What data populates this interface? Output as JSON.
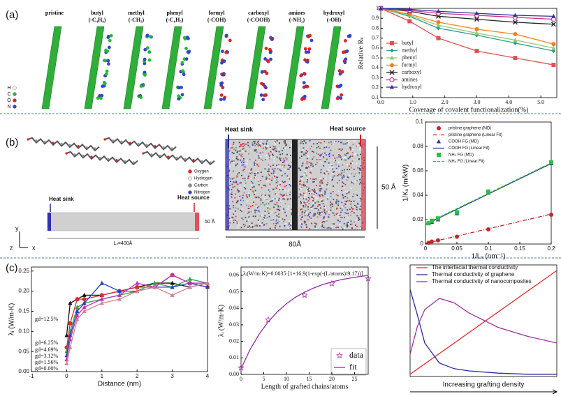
{
  "panels": {
    "a": {
      "label": "(a)",
      "structures": [
        {
          "name": "pristine"
        },
        {
          "name": "butyl",
          "formula": "(-C₄H₉)"
        },
        {
          "name": "methyl",
          "formula": "(-CH₃)"
        },
        {
          "name": "phenyl",
          "formula": "(-C₆H₅)"
        },
        {
          "name": "formyl",
          "formula": "(-COH)"
        },
        {
          "name": "carboxyl",
          "formula": "(-COOH)"
        },
        {
          "name": "amines",
          "formula": "(-NH₂)"
        },
        {
          "name": "hydroxyl",
          "formula": "(-OH)"
        }
      ],
      "atoms": [
        "H",
        "C",
        "O",
        "N"
      ],
      "atom_colors": [
        "#f4f4f4",
        "#22bb33",
        "#dd2222",
        "#3344cc"
      ]
    },
    "b": {
      "label": "(b)",
      "atoms": [
        "Oxygen",
        "Hydrogen",
        "Carbon",
        "Nitrogen"
      ],
      "atom_colors": [
        "#dd2222",
        "#f4f4f4",
        "#888888",
        "#3344cc"
      ],
      "sink": "Heat sink",
      "source": "Heat source",
      "width": "50 Å",
      "length": "Lₓ=400Å",
      "axes": [
        "y",
        "z",
        "x"
      ],
      "box_sink": "Heat sink",
      "box_source": "Heat source",
      "box_width": "50 Å",
      "box_length": "80Å"
    },
    "c": {
      "label": "(c)"
    }
  },
  "chart_data": [
    {
      "type": "line",
      "ylabel": "Relative Rₖ",
      "xlabel": "Coverage of covalent functionalization(%)",
      "x": [
        0,
        0.9,
        1.8,
        3.0,
        4.2,
        5.4
      ],
      "xlim": [
        0,
        5.5
      ],
      "ylim": [
        0.1,
        1.0
      ],
      "xticks": [
        {
          "value": 0,
          "label": "0.0"
        },
        {
          "value": 1,
          "label": "1.0"
        },
        {
          "value": 2,
          "label": "2.0"
        },
        {
          "value": 3,
          "label": "3.0"
        },
        {
          "value": 4,
          "label": "4.0"
        },
        {
          "value": 5,
          "label": "5.0"
        }
      ],
      "yticks": [
        0.1,
        0.2,
        0.3,
        0.4,
        0.5,
        0.6,
        0.7,
        0.8,
        0.9,
        1
      ],
      "legend": "lower left",
      "series": [
        {
          "name": "butyl",
          "color": "#e05050",
          "marker": "square",
          "line": "solid",
          "values": [
            1.0,
            0.87,
            0.7,
            0.57,
            0.5,
            0.43
          ]
        },
        {
          "name": "methyl",
          "color": "#2e9e8e",
          "marker": "diamond",
          "line": "solid",
          "values": [
            1.0,
            0.92,
            0.8,
            0.73,
            0.65,
            0.57
          ]
        },
        {
          "name": "phenyl",
          "color": "#8fcc70",
          "marker": "triangle",
          "line": "solid",
          "values": [
            1.0,
            0.93,
            0.83,
            0.75,
            0.68,
            0.6
          ]
        },
        {
          "name": "formyl",
          "color": "#f08020",
          "marker": "circle",
          "line": "solid",
          "values": [
            1.0,
            0.94,
            0.86,
            0.79,
            0.74,
            0.64
          ]
        },
        {
          "name": "carboxyl",
          "color": "#222222",
          "marker": "x",
          "line": "solid",
          "values": [
            1.0,
            0.97,
            0.92,
            0.89,
            0.86,
            0.84
          ]
        },
        {
          "name": "amines",
          "color": "#d0308f",
          "marker": "open-circle",
          "line": "solid",
          "values": [
            1.0,
            0.98,
            0.95,
            0.93,
            0.91,
            0.89
          ]
        },
        {
          "name": "hydroxyl",
          "color": "#3030a0",
          "marker": "triangle",
          "line": "solid",
          "values": [
            1.0,
            0.99,
            0.97,
            0.95,
            0.93,
            0.92
          ]
        }
      ]
    },
    {
      "type": "line",
      "ylabel": "1/Kₓ (m/kW)",
      "xlabel": "1/Lₓ (nm⁻¹)",
      "xlim": [
        0,
        0.2
      ],
      "ylim": [
        0,
        0.1
      ],
      "xticks": [
        0,
        0.05,
        0.1,
        0.15,
        0.2
      ],
      "yticks": [
        0,
        0.02,
        0.04,
        0.06,
        0.08,
        0.1
      ],
      "legend": "upper left",
      "series": [
        {
          "name": "pristine graphene (MD)",
          "color": "#c0282a",
          "marker": "circle",
          "line": "none",
          "x": [
            0.005,
            0.01,
            0.02,
            0.05,
            0.1,
            0.2
          ],
          "values": [
            0.001,
            0.002,
            0.003,
            0.006,
            0.012,
            0.024
          ]
        },
        {
          "name": "pristine graphene (Linear Fit)",
          "color": "#c0282a",
          "marker": "none",
          "line": "dashdot",
          "x": [
            0,
            0.2
          ],
          "values": [
            0.0005,
            0.0245
          ]
        },
        {
          "name": "COOH FG (MD)",
          "color": "#2a3a9a",
          "marker": "triangle",
          "line": "none",
          "x": [
            0.005,
            0.01,
            0.02,
            0.05,
            0.1,
            0.2
          ],
          "values": [
            0.017,
            0.018,
            0.02,
            0.025,
            0.042,
            0.066
          ]
        },
        {
          "name": "COOH FG (Linear Fit)",
          "color": "#2a3a9a",
          "marker": "none",
          "line": "solid",
          "x": [
            0,
            0.2
          ],
          "values": [
            0.016,
            0.066
          ]
        },
        {
          "name": "NH₂ FG (MD)",
          "color": "#33bb44",
          "marker": "square",
          "line": "none",
          "x": [
            0.005,
            0.01,
            0.02,
            0.05,
            0.1,
            0.2
          ],
          "values": [
            0.017,
            0.019,
            0.021,
            0.026,
            0.043,
            0.067
          ]
        },
        {
          "name": "NH₂ FG (Linear Fit)",
          "color": "#33bb44",
          "marker": "none",
          "line": "dashed",
          "x": [
            0,
            0.2
          ],
          "values": [
            0.0165,
            0.0665
          ]
        }
      ]
    },
    {
      "type": "line",
      "ylabel": "λᵢ (W/m·K)",
      "xlabel": "Distance (nm)",
      "x": [
        0,
        0.1,
        0.3,
        0.5,
        1.0,
        1.5,
        2.0,
        2.5,
        3.0,
        3.5,
        4.0
      ],
      "xlim": [
        -1,
        4
      ],
      "ylim": [
        0,
        0.26
      ],
      "xticks": [
        -1,
        0,
        1,
        2,
        3,
        4
      ],
      "yticks": [
        {
          "value": 0,
          "label": "0.00"
        },
        {
          "value": 0.05,
          "label": "0.05"
        },
        {
          "value": 0.1,
          "label": "0.10"
        },
        {
          "value": 0.15,
          "label": "0.15"
        },
        {
          "value": 0.2,
          "label": "0.20"
        },
        {
          "value": 0.25,
          "label": "0.25"
        }
      ],
      "legend": "lower left",
      "series": [
        {
          "name": "gd=12.5%",
          "color": "#111111",
          "marker": "triangle",
          "line": "solid",
          "values": [
            0.09,
            0.17,
            0.18,
            0.19,
            0.19,
            0.2,
            0.21,
            0.22,
            0.22,
            0.21,
            0.22
          ]
        },
        {
          "name": "gd=6.25%",
          "color": "#d03030",
          "marker": "circle",
          "line": "solid",
          "values": [
            0.06,
            0.12,
            0.18,
            0.18,
            0.19,
            0.2,
            0.21,
            0.21,
            0.24,
            0.22,
            0.21
          ]
        },
        {
          "name": "gd=4.69%",
          "color": "#30a040",
          "marker": "triangle",
          "line": "solid",
          "values": [
            0.05,
            0.1,
            0.16,
            0.17,
            0.18,
            0.19,
            0.2,
            0.22,
            0.21,
            0.23,
            0.22
          ]
        },
        {
          "name": "gd=3.12%",
          "color": "#2040c0",
          "marker": "triangle",
          "line": "solid",
          "values": [
            0.04,
            0.09,
            0.15,
            0.17,
            0.22,
            0.2,
            0.2,
            0.21,
            0.21,
            0.22,
            0.21
          ]
        },
        {
          "name": "gd=1.56%",
          "color": "#c030c0",
          "marker": "triangle",
          "line": "solid",
          "values": [
            0.03,
            0.08,
            0.14,
            0.16,
            0.18,
            0.19,
            0.22,
            0.21,
            0.24,
            0.22,
            0.22
          ]
        },
        {
          "name": "gd=0.00%",
          "color": "#d08090",
          "marker": "triangle",
          "line": "solid",
          "values": [
            0.02,
            0.06,
            0.13,
            0.15,
            0.17,
            0.18,
            0.2,
            0.21,
            0.19,
            0.21,
            0.22
          ]
        }
      ]
    },
    {
      "type": "line",
      "ylabel": "λᵢ (W/m·K)",
      "xlabel": "Length of grafted chains/atoms",
      "annotation": "λᵢ(W/m·K)=0.0035·[1+16.9(1-exp(-(L/atoms)/9.17))]",
      "xlim": [
        0,
        28
      ],
      "ylim": [
        0,
        0.065
      ],
      "xticks": [
        0,
        5,
        10,
        15,
        20,
        25
      ],
      "yticks": [
        {
          "value": 0,
          "label": "0.00"
        },
        {
          "value": 0.01,
          "label": "0.01"
        },
        {
          "value": 0.02,
          "label": "0.02"
        },
        {
          "value": 0.03,
          "label": "0.03"
        },
        {
          "value": 0.04,
          "label": "0.04"
        },
        {
          "value": 0.05,
          "label": "0.05"
        },
        {
          "value": 0.06,
          "label": "0.06"
        }
      ],
      "legend": "lower right",
      "series": [
        {
          "name": "data",
          "color": "#b040b0",
          "marker": "star",
          "line": "none",
          "x": [
            0,
            6,
            14,
            20,
            28
          ],
          "values": [
            0.004,
            0.033,
            0.048,
            0.055,
            0.058
          ]
        },
        {
          "name": "fit",
          "color": "#9030a0",
          "marker": "none",
          "line": "solid",
          "x": [
            0,
            2,
            4,
            6,
            8,
            10,
            12,
            14,
            16,
            18,
            20,
            22,
            24,
            26,
            28
          ],
          "values": [
            0.0035,
            0.0151,
            0.0244,
            0.0319,
            0.0379,
            0.0428,
            0.0467,
            0.0498,
            0.0523,
            0.0544,
            0.056,
            0.0573,
            0.0583,
            0.0592,
            0.0599
          ]
        }
      ]
    },
    {
      "type": "line",
      "xlabel": "Increasing grafting density",
      "xlim": [
        0,
        1
      ],
      "ylim": [
        0,
        1
      ],
      "legend": "upper left",
      "series": [
        {
          "name": "The interfacial thermal conductivity",
          "color": "#e03030",
          "marker": "none",
          "line": "solid",
          "x": [
            0,
            1
          ],
          "values": [
            0.02,
            0.95
          ]
        },
        {
          "name": "Thermal conductivity of graphene",
          "color": "#2828a0",
          "marker": "none",
          "line": "solid",
          "x": [
            0,
            0.05,
            0.1,
            0.2,
            0.3,
            0.4,
            0.6,
            0.8,
            1
          ],
          "values": [
            0.78,
            0.55,
            0.3,
            0.12,
            0.07,
            0.05,
            0.03,
            0.02,
            0.02
          ]
        },
        {
          "name": "Thermal conductivity of nanocomposites",
          "color": "#a030a0",
          "marker": "none",
          "line": "solid",
          "x": [
            0,
            0.05,
            0.1,
            0.2,
            0.3,
            0.4,
            0.6,
            0.8,
            1
          ],
          "values": [
            0.2,
            0.45,
            0.6,
            0.7,
            0.66,
            0.57,
            0.44,
            0.36,
            0.3
          ]
        }
      ]
    }
  ]
}
